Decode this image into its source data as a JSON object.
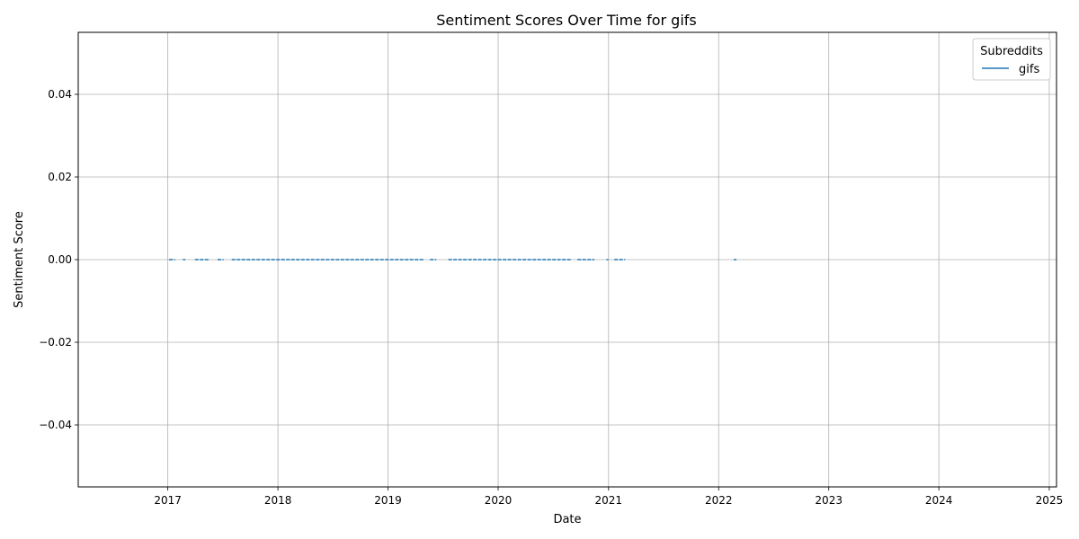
{
  "chart_data": {
    "type": "line",
    "title": "Sentiment Scores Over Time for gifs",
    "xlabel": "Date",
    "ylabel": "Sentiment Score",
    "xlim": [
      "2016-03-10",
      "2025-01-25"
    ],
    "ylim": [
      -0.055,
      0.055
    ],
    "x_ticks": [
      "2017",
      "2018",
      "2019",
      "2020",
      "2021",
      "2022",
      "2023",
      "2024",
      "2025"
    ],
    "y_ticks": [
      "−0.04",
      "−0.02",
      "0.00",
      "0.02",
      "0.04"
    ],
    "grid": true,
    "legend": {
      "title": "Subreddits",
      "position": "top-right"
    },
    "series": [
      {
        "name": "gifs",
        "color": "#1f77b4",
        "segments": [
          [
            "2017-01-05",
            "2017-01-25"
          ],
          [
            "2017-02-20",
            "2017-02-28"
          ],
          [
            "2017-04-01",
            "2017-05-20"
          ],
          [
            "2017-06-15",
            "2017-07-05"
          ],
          [
            "2017-08-01",
            "2019-05-01"
          ],
          [
            "2019-05-20",
            "2019-06-10"
          ],
          [
            "2019-07-20",
            "2020-08-30"
          ],
          [
            "2020-09-20",
            "2020-11-15"
          ],
          [
            "2020-12-25",
            "2020-12-31"
          ],
          [
            "2021-01-20",
            "2021-02-25"
          ],
          [
            "2022-02-20",
            "2022-03-01"
          ]
        ],
        "value": 0.0
      }
    ]
  }
}
